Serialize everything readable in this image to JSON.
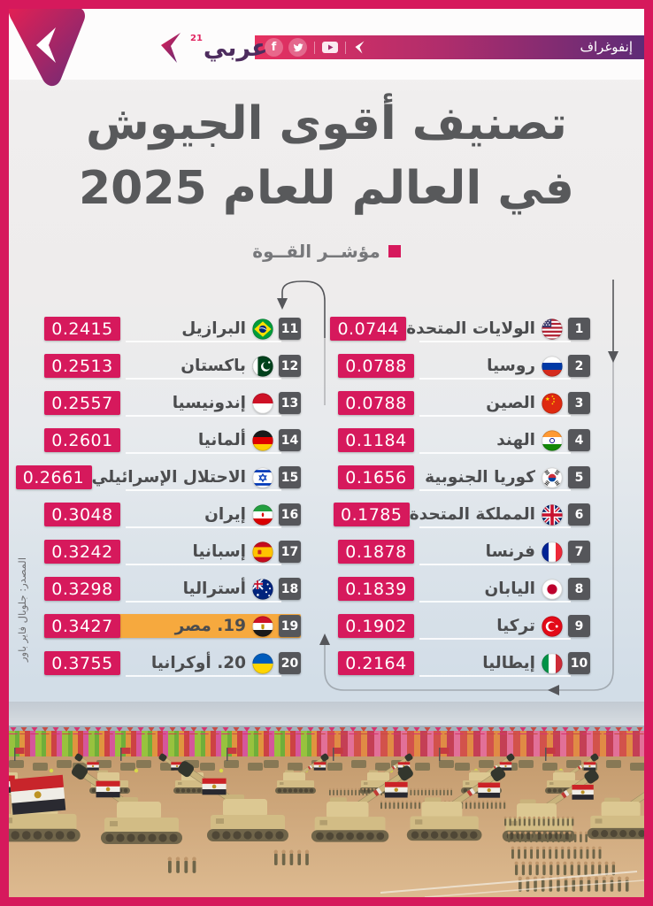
{
  "header": {
    "category_label": "إنفوغراف",
    "brand": {
      "wordmark": "عربي",
      "superscript": "21"
    },
    "social_icons": [
      "facebook-icon",
      "twitter-icon",
      "youtube-icon",
      "share-arrow-icon"
    ]
  },
  "title": {
    "line1": "تصنيف أقوى الجيوش",
    "line2": "في العالم للعام 2025"
  },
  "legend": {
    "label": "مؤشــر القــوة"
  },
  "source": {
    "credit": "المصدر: جلوبال فاير باور"
  },
  "colors": {
    "accent": "#D6195C",
    "highlight_orange": "#F6A93E",
    "rank_badge_gray": "#55565A",
    "title_gray": "#58595B",
    "header_gradient_left": "#E63160",
    "header_gradient_right": "#5E2B77"
  },
  "chart_data": {
    "type": "table",
    "title": "تصنيف أقوى الجيوش في العالم للعام 2025",
    "value_label": "مؤشــر القــوة",
    "source": "المصدر: جلوبال فاير باور",
    "highlighted_rank": 19,
    "rows": [
      {
        "rank": 1,
        "country": "الولايات المتحدة",
        "flag": "us",
        "power_index": 0.0744
      },
      {
        "rank": 2,
        "country": "روسيا",
        "flag": "ru",
        "power_index": 0.0788
      },
      {
        "rank": 3,
        "country": "الصين",
        "flag": "cn",
        "power_index": 0.0788
      },
      {
        "rank": 4,
        "country": "الهند",
        "flag": "in",
        "power_index": 0.1184
      },
      {
        "rank": 5,
        "country": "كوريا الجنوبية",
        "flag": "kr",
        "power_index": 0.1656
      },
      {
        "rank": 6,
        "country": "المملكة المتحدة",
        "flag": "gb",
        "power_index": 0.1785
      },
      {
        "rank": 7,
        "country": "فرنسا",
        "flag": "fr",
        "power_index": 0.1878
      },
      {
        "rank": 8,
        "country": "اليابان",
        "flag": "jp",
        "power_index": 0.1839
      },
      {
        "rank": 9,
        "country": "تركيا",
        "flag": "tr",
        "power_index": 0.1902
      },
      {
        "rank": 10,
        "country": "إيطاليا",
        "flag": "it",
        "power_index": 0.2164
      },
      {
        "rank": 11,
        "country": "البرازيل",
        "flag": "br",
        "power_index": 0.2415
      },
      {
        "rank": 12,
        "country": "باكستان",
        "flag": "pk",
        "power_index": 0.2513
      },
      {
        "rank": 13,
        "country": "إندونيسيا",
        "flag": "id",
        "power_index": 0.2557
      },
      {
        "rank": 14,
        "country": "ألمانيا",
        "flag": "de",
        "power_index": 0.2601
      },
      {
        "rank": 15,
        "country": "الاحتلال الإسرائيلي",
        "flag": "il",
        "power_index": 0.2661
      },
      {
        "rank": 16,
        "country": "إيران",
        "flag": "ir",
        "power_index": 0.3048
      },
      {
        "rank": 17,
        "country": "إسبانيا",
        "flag": "es",
        "power_index": 0.3242
      },
      {
        "rank": 18,
        "country": "أستراليا",
        "flag": "au",
        "power_index": 0.3298
      },
      {
        "rank": 19,
        "country": "مصر",
        "display_name": "19. مصر",
        "flag": "eg",
        "power_index": 0.3427,
        "highlight": true
      },
      {
        "rank": 20,
        "country": "أوكرانيا",
        "display_name": "20. أوكرانيا",
        "flag": "ua",
        "power_index": 0.3755
      }
    ]
  }
}
